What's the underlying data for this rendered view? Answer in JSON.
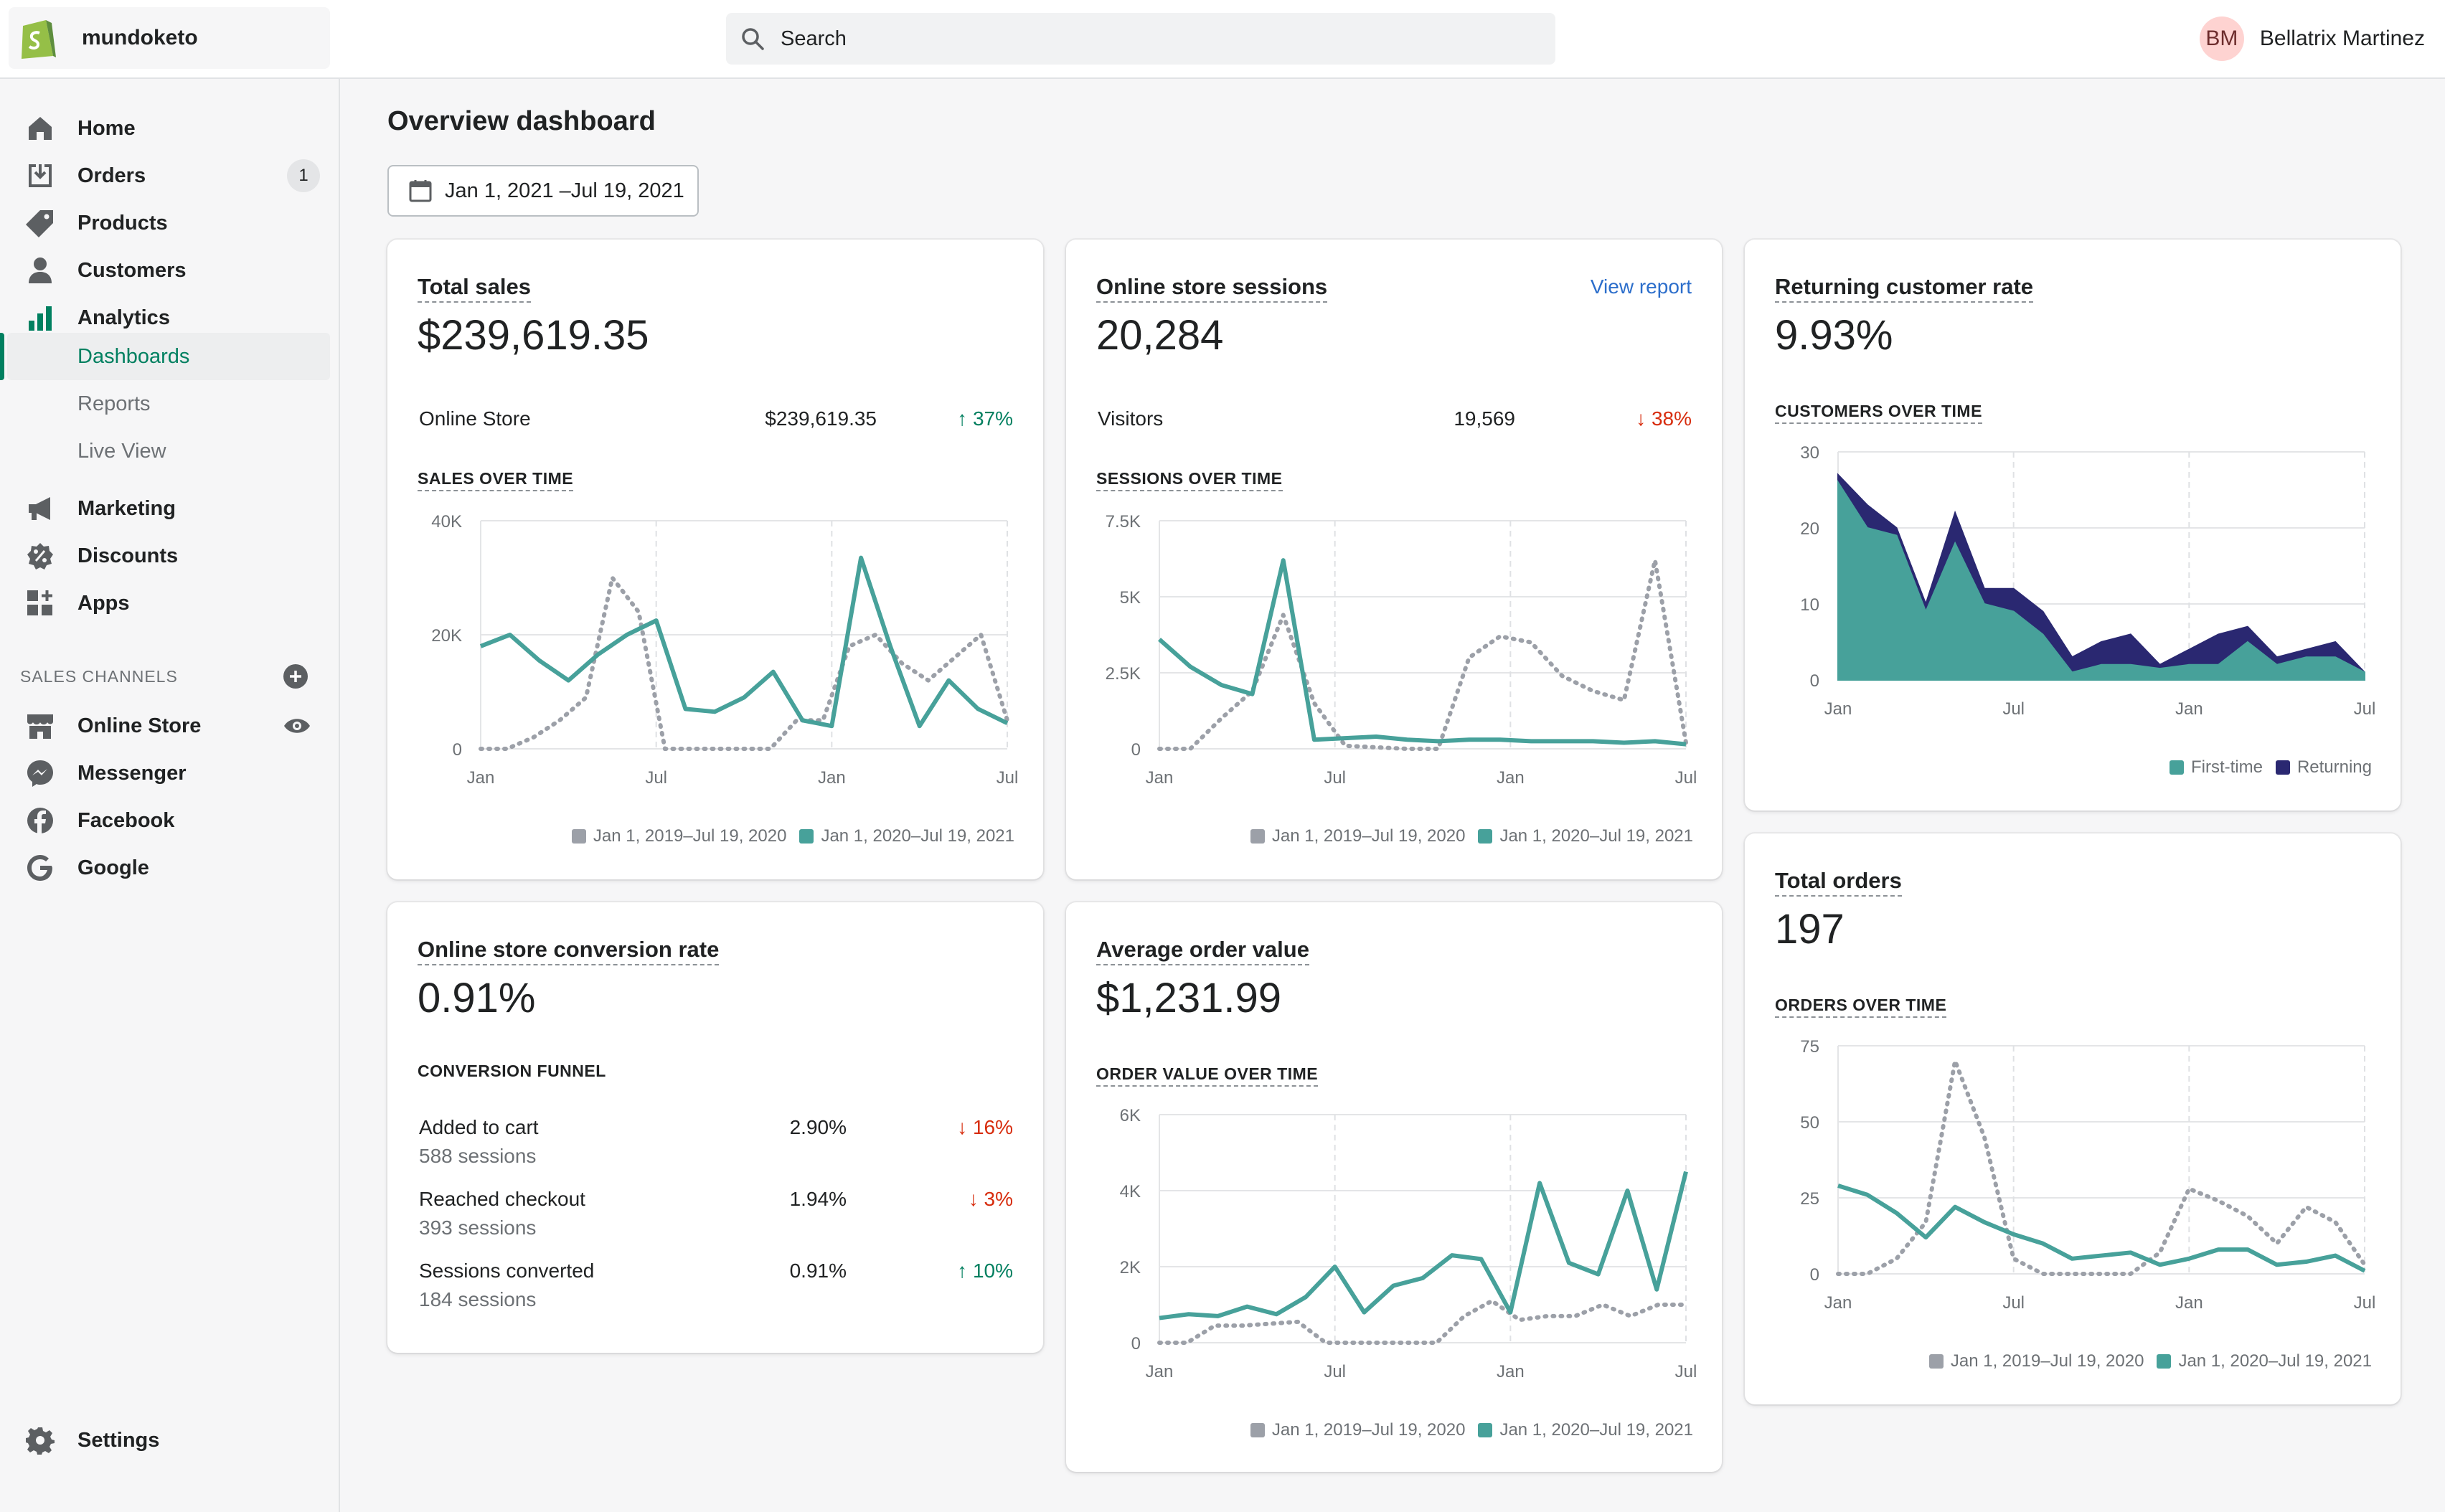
{
  "store": {
    "name": "mundoketo"
  },
  "search": {
    "placeholder": "Search"
  },
  "user": {
    "initials": "BM",
    "name": "Bellatrix Martinez"
  },
  "sidebar": {
    "items": [
      {
        "label": "Home"
      },
      {
        "label": "Orders",
        "badge": "1"
      },
      {
        "label": "Products"
      },
      {
        "label": "Customers"
      },
      {
        "label": "Analytics"
      },
      {
        "label": "Dashboards"
      },
      {
        "label": "Reports"
      },
      {
        "label": "Live View"
      },
      {
        "label": "Marketing"
      },
      {
        "label": "Discounts"
      },
      {
        "label": "Apps"
      }
    ],
    "sales_channels_heading": "SALES CHANNELS",
    "channels": [
      {
        "label": "Online Store"
      },
      {
        "label": "Messenger"
      },
      {
        "label": "Facebook"
      },
      {
        "label": "Google"
      }
    ],
    "settings": "Settings"
  },
  "page": {
    "title": "Overview dashboard",
    "date_range": "Jan 1, 2021 –Jul 19, 2021"
  },
  "colors": {
    "teal": "#47a19a",
    "gray_dotted": "#9ca0a8",
    "navy": "#2a2871",
    "link": "#2c6ecb"
  },
  "legend_compare": {
    "prev": "Jan 1, 2019–Jul 19, 2020",
    "curr": "Jan 1, 2020–Jul 19, 2021"
  },
  "total_sales": {
    "title": "Total sales",
    "value": "$239,619.35",
    "row": {
      "label": "Online Store",
      "value": "$239,619.35",
      "change": "37%"
    },
    "subhead": "SALES OVER TIME"
  },
  "sessions": {
    "title": "Online store sessions",
    "link": "View report",
    "value": "20,284",
    "row": {
      "label": "Visitors",
      "value": "19,569",
      "change": "38%"
    },
    "subhead": "SESSIONS OVER TIME"
  },
  "returning": {
    "title": "Returning customer rate",
    "value": "9.93%",
    "subhead": "CUSTOMERS OVER TIME",
    "legend": [
      "First-time",
      "Returning"
    ]
  },
  "conversion": {
    "title": "Online store conversion rate",
    "value": "0.91%",
    "subhead": "CONVERSION FUNNEL",
    "rows": [
      {
        "label": "Added to cart",
        "sessions": "588 sessions",
        "rate": "2.90%",
        "change": "16%",
        "dir": "down"
      },
      {
        "label": "Reached checkout",
        "sessions": "393 sessions",
        "rate": "1.94%",
        "change": "3%",
        "dir": "down"
      },
      {
        "label": "Sessions converted",
        "sessions": "184 sessions",
        "rate": "0.91%",
        "change": "10%",
        "dir": "up"
      }
    ]
  },
  "aov": {
    "title": "Average order value",
    "value": "$1,231.99",
    "subhead": "ORDER VALUE OVER TIME"
  },
  "orders": {
    "title": "Total orders",
    "value": "197",
    "subhead": "ORDERS OVER TIME"
  },
  "chart_data": [
    {
      "id": "sales",
      "type": "line",
      "title": "SALES OVER TIME",
      "x_ticks": [
        "Jan",
        "Jul",
        "Jan",
        "Jul"
      ],
      "y_ticks": [
        "40K",
        "20K",
        "0"
      ],
      "ylim": [
        0,
        40000
      ],
      "series": [
        {
          "name": "Jan 1, 2019–Jul 19, 2020",
          "style": "dotted",
          "values": [
            0,
            0,
            2000,
            5000,
            9000,
            30000,
            24000,
            0,
            0,
            0,
            0,
            0,
            5000,
            5000,
            18000,
            20000,
            15000,
            12000,
            16000,
            20000,
            5000
          ]
        },
        {
          "name": "Jan 1, 2020–Jul 19, 2021",
          "style": "solid",
          "values": [
            18000,
            20000,
            15500,
            12000,
            16500,
            20000,
            22500,
            7000,
            6500,
            9000,
            13500,
            5000,
            4000,
            33500,
            18000,
            4000,
            12000,
            7000,
            4500
          ]
        }
      ]
    },
    {
      "id": "sessions",
      "type": "line",
      "title": "SESSIONS OVER TIME",
      "x_ticks": [
        "Jan",
        "Jul",
        "Jan",
        "Jul"
      ],
      "y_ticks": [
        "7.5K",
        "5K",
        "2.5K",
        "0"
      ],
      "ylim": [
        0,
        7500
      ],
      "series": [
        {
          "name": "Jan 1, 2019–Jul 19, 2020",
          "style": "dotted",
          "values": [
            0,
            0,
            1000,
            1900,
            4400,
            1500,
            100,
            50,
            0,
            0,
            3000,
            3700,
            3500,
            2400,
            1900,
            1600,
            6200,
            200
          ]
        },
        {
          "name": "Jan 1, 2020–Jul 19, 2021",
          "style": "solid",
          "values": [
            3600,
            2700,
            2100,
            1800,
            6200,
            300,
            350,
            400,
            300,
            250,
            300,
            300,
            250,
            250,
            250,
            200,
            250,
            150
          ]
        }
      ]
    },
    {
      "id": "customers",
      "type": "area",
      "title": "CUSTOMERS OVER TIME",
      "x_ticks": [
        "Jan",
        "Jul",
        "Jan",
        "Jul"
      ],
      "y_ticks": [
        "30",
        "20",
        "10",
        "0"
      ],
      "ylim": [
        0,
        30
      ],
      "series": [
        {
          "name": "First-time",
          "values": [
            26,
            20,
            19,
            9,
            18,
            10,
            9,
            6,
            1,
            2,
            2,
            1.5,
            2,
            2,
            5,
            2,
            3,
            3,
            1
          ]
        },
        {
          "name": "Returning",
          "values": [
            27,
            23,
            20,
            10,
            22,
            12,
            12,
            9,
            3,
            5,
            6,
            2,
            4,
            6,
            7,
            3,
            4,
            5,
            1
          ]
        }
      ]
    },
    {
      "id": "aov",
      "type": "line",
      "title": "ORDER VALUE OVER TIME",
      "x_ticks": [
        "Jan",
        "Jul",
        "Jan",
        "Jul"
      ],
      "y_ticks": [
        "6K",
        "4K",
        "2K",
        "0"
      ],
      "ylim": [
        0,
        6000
      ],
      "series": [
        {
          "name": "Jan 1, 2019–Jul 19, 2020",
          "style": "dotted",
          "values": [
            0,
            0,
            450,
            450,
            500,
            550,
            0,
            0,
            0,
            0,
            0,
            700,
            1100,
            600,
            700,
            700,
            1000,
            700,
            1000,
            1000
          ]
        },
        {
          "name": "Jan 1, 2020–Jul 19, 2021",
          "style": "solid",
          "values": [
            650,
            750,
            700,
            950,
            750,
            1200,
            2000,
            800,
            1500,
            1700,
            2300,
            2200,
            800,
            4200,
            2100,
            1800,
            4000,
            1400,
            4500
          ]
        }
      ]
    },
    {
      "id": "orders",
      "type": "line",
      "title": "ORDERS OVER TIME",
      "x_ticks": [
        "Jan",
        "Jul",
        "Jan",
        "Jul"
      ],
      "y_ticks": [
        "75",
        "50",
        "25",
        "0"
      ],
      "ylim": [
        0,
        75
      ],
      "series": [
        {
          "name": "Jan 1, 2019–Jul 19, 2020",
          "style": "dotted",
          "values": [
            0,
            0,
            5,
            17,
            70,
            45,
            5,
            0,
            0,
            0,
            0,
            7,
            28,
            24,
            19,
            10,
            22,
            17,
            3
          ]
        },
        {
          "name": "Jan 1, 2020–Jul 19, 2021",
          "style": "solid",
          "values": [
            29,
            26,
            20,
            12,
            22,
            17,
            13,
            10,
            5,
            6,
            7,
            3,
            5,
            8,
            8,
            3,
            4,
            6,
            1
          ]
        }
      ]
    }
  ]
}
